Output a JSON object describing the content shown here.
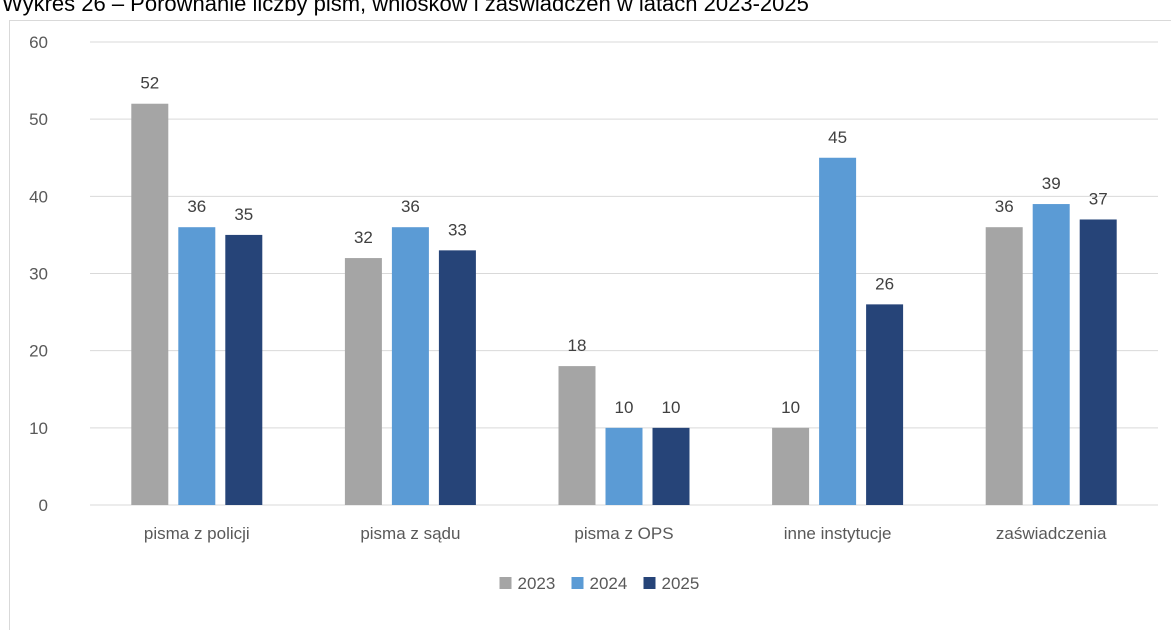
{
  "chart_data": {
    "type": "bar",
    "title": "Wykres 26 – Porównanie liczby pism, wniosków i zaświadczeń w latach 2023-2025",
    "categories": [
      "pisma z policji",
      "pisma z sądu",
      "pisma z OPS",
      "inne instytucje",
      "zaświadczenia"
    ],
    "series": [
      {
        "name": "2023",
        "color": "#a5a5a5",
        "values": [
          52,
          32,
          18,
          10,
          36
        ]
      },
      {
        "name": "2024",
        "color": "#5b9bd5",
        "values": [
          36,
          36,
          10,
          45,
          39
        ]
      },
      {
        "name": "2025",
        "color": "#264478",
        "values": [
          35,
          33,
          10,
          26,
          37
        ]
      }
    ],
    "ylim": [
      0,
      60
    ],
    "yticks": [
      0,
      10,
      20,
      30,
      40,
      50,
      60
    ],
    "grid": true,
    "legend": "bottom-center",
    "gridline_color": "#d9d9d9"
  }
}
